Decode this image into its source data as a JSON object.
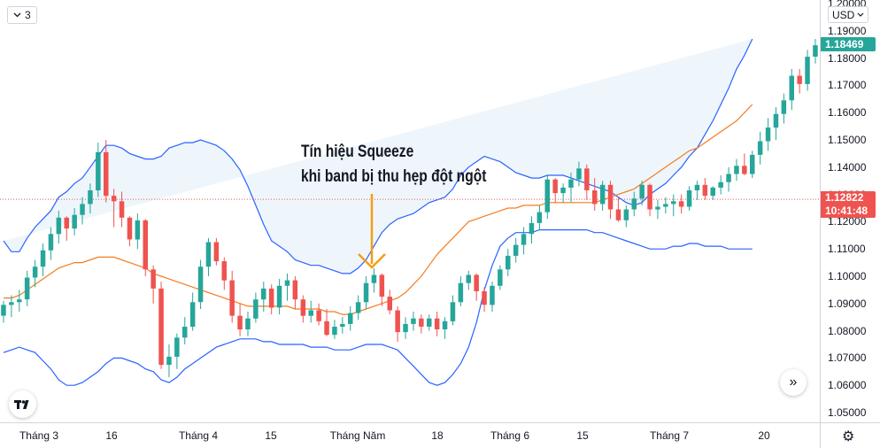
{
  "indicator_button": {
    "label": "3",
    "icon": "chevron-down-icon"
  },
  "currency_button": {
    "label": "USD",
    "icon": "chevron-down-icon"
  },
  "annotation": {
    "line1": "Tín hiệu Squeeze",
    "line2": "khi band bị thu hẹp đột ngột",
    "arrow_color": "#f59d16"
  },
  "price_labels": {
    "last": "1.18469",
    "current": "1.12822",
    "countdown": "10:41:48"
  },
  "colors": {
    "up": "#26a69a",
    "down": "#ef5350",
    "band": "#2962ff",
    "band_fill": "#eef6fc",
    "basis": "#f57c1f"
  },
  "chart_data": {
    "type": "candlestick",
    "ylim": [
      1.05,
      1.2
    ],
    "yticks": [
      "1.05000",
      "1.06000",
      "1.07000",
      "1.08000",
      "1.09000",
      "1.10000",
      "1.11000",
      "1.12000",
      "1.13000",
      "1.14000",
      "1.15000",
      "1.16000",
      "1.17000",
      "1.18000",
      "1.19000",
      "1.20000"
    ],
    "xticks": [
      "Tháng 3",
      "16",
      "Tháng 4",
      "15",
      "Tháng Năm",
      "18",
      "Tháng 6",
      "15",
      "Tháng 7",
      "20"
    ],
    "current_price_line": 1.12822,
    "ohlc": [
      [
        1.0855,
        1.091,
        1.083,
        1.0895
      ],
      [
        1.0895,
        1.093,
        1.085,
        1.0905
      ],
      [
        1.0905,
        1.095,
        1.087,
        1.0915
      ],
      [
        1.0915,
        1.102,
        1.089,
        1.0995
      ],
      [
        1.0995,
        1.106,
        1.096,
        1.1035
      ],
      [
        1.1035,
        1.112,
        1.1,
        1.1095
      ],
      [
        1.1095,
        1.118,
        1.106,
        1.1155
      ],
      [
        1.1155,
        1.124,
        1.112,
        1.1215
      ],
      [
        1.1215,
        1.122,
        1.113,
        1.1175
      ],
      [
        1.1175,
        1.125,
        1.115,
        1.1225
      ],
      [
        1.1225,
        1.129,
        1.119,
        1.1265
      ],
      [
        1.1265,
        1.134,
        1.123,
        1.1315
      ],
      [
        1.1315,
        1.149,
        1.129,
        1.1455
      ],
      [
        1.1455,
        1.15,
        1.127,
        1.1295
      ],
      [
        1.1295,
        1.132,
        1.118,
        1.1275
      ],
      [
        1.1275,
        1.131,
        1.118,
        1.1215
      ],
      [
        1.1215,
        1.122,
        1.111,
        1.1135
      ],
      [
        1.1135,
        1.123,
        1.11,
        1.1205
      ],
      [
        1.1205,
        1.121,
        1.1,
        1.1025
      ],
      [
        1.1025,
        1.104,
        1.09,
        1.0955
      ],
      [
        1.0955,
        1.098,
        1.066,
        1.0675
      ],
      [
        1.0675,
        1.075,
        1.063,
        1.0705
      ],
      [
        1.0705,
        1.079,
        1.066,
        1.0775
      ],
      [
        1.0775,
        1.085,
        1.075,
        1.0815
      ],
      [
        1.0815,
        1.094,
        1.08,
        1.0905
      ],
      [
        1.0905,
        1.106,
        1.088,
        1.1035
      ],
      [
        1.1035,
        1.114,
        1.1,
        1.1125
      ],
      [
        1.1125,
        1.114,
        1.104,
        1.1055
      ],
      [
        1.1055,
        1.107,
        1.095,
        1.0985
      ],
      [
        1.0985,
        1.102,
        1.083,
        1.0855
      ],
      [
        1.0855,
        1.09,
        1.078,
        1.0805
      ],
      [
        1.0805,
        1.087,
        1.078,
        1.0845
      ],
      [
        1.0845,
        1.094,
        1.083,
        1.0915
      ],
      [
        1.0915,
        1.098,
        1.087,
        1.0955
      ],
      [
        1.0955,
        1.097,
        1.086,
        1.0885
      ],
      [
        1.0885,
        1.099,
        1.086,
        1.0965
      ],
      [
        1.0965,
        1.101,
        1.091,
        1.0985
      ],
      [
        1.0985,
        1.1,
        1.088,
        1.0915
      ],
      [
        1.0915,
        1.093,
        1.083,
        1.0855
      ],
      [
        1.0855,
        1.091,
        1.083,
        1.0875
      ],
      [
        1.0875,
        1.09,
        1.082,
        1.0835
      ],
      [
        1.0835,
        1.088,
        1.078,
        1.0785
      ],
      [
        1.0785,
        1.084,
        1.077,
        1.0815
      ],
      [
        1.0815,
        1.085,
        1.079,
        1.0825
      ],
      [
        1.0825,
        1.089,
        1.08,
        1.0865
      ],
      [
        1.0865,
        1.093,
        1.084,
        1.0905
      ],
      [
        1.0905,
        1.1,
        1.088,
        1.0975
      ],
      [
        1.0975,
        1.103,
        1.094,
        1.1005
      ],
      [
        1.1005,
        1.101,
        1.089,
        1.0925
      ],
      [
        1.0925,
        1.095,
        1.086,
        1.0875
      ],
      [
        1.0875,
        1.089,
        1.076,
        1.0795
      ],
      [
        1.0795,
        1.085,
        1.077,
        1.0825
      ],
      [
        1.0825,
        1.087,
        1.08,
        1.0845
      ],
      [
        1.0845,
        1.086,
        1.079,
        1.0815
      ],
      [
        1.0815,
        1.086,
        1.08,
        1.0845
      ],
      [
        1.0845,
        1.087,
        1.078,
        1.0805
      ],
      [
        1.0805,
        1.085,
        1.077,
        1.0835
      ],
      [
        1.0835,
        1.093,
        1.082,
        1.0905
      ],
      [
        1.0905,
        1.1,
        1.089,
        1.0975
      ],
      [
        1.0975,
        1.102,
        1.095,
        1.1005
      ],
      [
        1.1005,
        1.101,
        1.091,
        1.0945
      ],
      [
        1.0945,
        1.096,
        1.087,
        1.0895
      ],
      [
        1.0895,
        1.098,
        1.087,
        1.0965
      ],
      [
        1.0965,
        1.104,
        1.095,
        1.1025
      ],
      [
        1.1025,
        1.11,
        1.1,
        1.1075
      ],
      [
        1.1075,
        1.114,
        1.105,
        1.1115
      ],
      [
        1.1115,
        1.118,
        1.108,
        1.1155
      ],
      [
        1.1155,
        1.122,
        1.112,
        1.1195
      ],
      [
        1.1195,
        1.126,
        1.117,
        1.1235
      ],
      [
        1.1235,
        1.137,
        1.121,
        1.1355
      ],
      [
        1.1355,
        1.136,
        1.127,
        1.1305
      ],
      [
        1.1305,
        1.134,
        1.127,
        1.1325
      ],
      [
        1.1325,
        1.138,
        1.127,
        1.1355
      ],
      [
        1.1355,
        1.142,
        1.133,
        1.1395
      ],
      [
        1.1395,
        1.141,
        1.128,
        1.1315
      ],
      [
        1.1315,
        1.136,
        1.124,
        1.1265
      ],
      [
        1.1265,
        1.135,
        1.124,
        1.1335
      ],
      [
        1.1335,
        1.135,
        1.121,
        1.1245
      ],
      [
        1.1245,
        1.129,
        1.12,
        1.1205
      ],
      [
        1.1205,
        1.126,
        1.118,
        1.1245
      ],
      [
        1.1245,
        1.131,
        1.122,
        1.1285
      ],
      [
        1.1285,
        1.135,
        1.126,
        1.1335
      ],
      [
        1.1335,
        1.134,
        1.122,
        1.1245
      ],
      [
        1.1245,
        1.128,
        1.121,
        1.1255
      ],
      [
        1.1255,
        1.129,
        1.123,
        1.1265
      ],
      [
        1.1265,
        1.13,
        1.122,
        1.1275
      ],
      [
        1.1275,
        1.13,
        1.123,
        1.1255
      ],
      [
        1.1255,
        1.133,
        1.124,
        1.1315
      ],
      [
        1.1315,
        1.135,
        1.128,
        1.1335
      ],
      [
        1.1335,
        1.136,
        1.128,
        1.1295
      ],
      [
        1.1295,
        1.133,
        1.128,
        1.1325
      ],
      [
        1.1325,
        1.137,
        1.13,
        1.1345
      ],
      [
        1.1345,
        1.14,
        1.131,
        1.1375
      ],
      [
        1.1375,
        1.143,
        1.135,
        1.1405
      ],
      [
        1.1405,
        1.145,
        1.137,
        1.1375
      ],
      [
        1.1375,
        1.146,
        1.136,
        1.1445
      ],
      [
        1.1445,
        1.153,
        1.141,
        1.1495
      ],
      [
        1.1495,
        1.158,
        1.146,
        1.1545
      ],
      [
        1.1545,
        1.162,
        1.15,
        1.1595
      ],
      [
        1.1595,
        1.167,
        1.156,
        1.1645
      ],
      [
        1.1645,
        1.176,
        1.161,
        1.1735
      ],
      [
        1.1735,
        1.176,
        1.167,
        1.1705
      ],
      [
        1.1705,
        1.183,
        1.168,
        1.1805
      ],
      [
        1.1805,
        1.187,
        1.178,
        1.1847
      ]
    ],
    "bollinger": {
      "upper": [
        1.113,
        1.109,
        1.109,
        1.114,
        1.118,
        1.121,
        1.124,
        1.129,
        1.131,
        1.134,
        1.136,
        1.14,
        1.144,
        1.148,
        1.148,
        1.147,
        1.145,
        1.144,
        1.143,
        1.143,
        1.144,
        1.147,
        1.148,
        1.149,
        1.149,
        1.15,
        1.149,
        1.148,
        1.146,
        1.143,
        1.139,
        1.133,
        1.126,
        1.119,
        1.113,
        1.111,
        1.109,
        1.106,
        1.105,
        1.104,
        1.104,
        1.103,
        1.102,
        1.101,
        1.101,
        1.103,
        1.106,
        1.111,
        1.116,
        1.119,
        1.121,
        1.122,
        1.123,
        1.125,
        1.127,
        1.128,
        1.129,
        1.132,
        1.137,
        1.14,
        1.142,
        1.144,
        1.143,
        1.142,
        1.14,
        1.138,
        1.137,
        1.136,
        1.136,
        1.137,
        1.137,
        1.137,
        1.136,
        1.135,
        1.134,
        1.133,
        1.132,
        1.131,
        1.129,
        1.127,
        1.126,
        1.127,
        1.13,
        1.132,
        1.134,
        1.137,
        1.14,
        1.144,
        1.147,
        1.152,
        1.157,
        1.163,
        1.169,
        1.176,
        1.181,
        1.187
      ],
      "basis": [
        1.092,
        1.092,
        1.093,
        1.095,
        1.097,
        1.099,
        1.101,
        1.103,
        1.104,
        1.105,
        1.105,
        1.106,
        1.107,
        1.107,
        1.107,
        1.106,
        1.105,
        1.104,
        1.103,
        1.101,
        1.1,
        1.099,
        1.098,
        1.097,
        1.096,
        1.095,
        1.094,
        1.093,
        1.092,
        1.091,
        1.09,
        1.089,
        1.089,
        1.089,
        1.089,
        1.089,
        1.089,
        1.088,
        1.088,
        1.088,
        1.088,
        1.087,
        1.087,
        1.086,
        1.086,
        1.087,
        1.088,
        1.089,
        1.09,
        1.091,
        1.092,
        1.094,
        1.097,
        1.1,
        1.104,
        1.108,
        1.111,
        1.114,
        1.117,
        1.12,
        1.121,
        1.122,
        1.123,
        1.124,
        1.125,
        1.125,
        1.126,
        1.126,
        1.126,
        1.127,
        1.127,
        1.127,
        1.127,
        1.127,
        1.127,
        1.127,
        1.128,
        1.129,
        1.13,
        1.131,
        1.132,
        1.134,
        1.136,
        1.138,
        1.14,
        1.142,
        1.144,
        1.146,
        1.147,
        1.149,
        1.151,
        1.153,
        1.155,
        1.157,
        1.16,
        1.163
      ],
      "lower": [
        1.072,
        1.073,
        1.074,
        1.073,
        1.072,
        1.069,
        1.066,
        1.062,
        1.06,
        1.06,
        1.061,
        1.063,
        1.065,
        1.068,
        1.07,
        1.07,
        1.069,
        1.068,
        1.066,
        1.065,
        1.062,
        1.061,
        1.063,
        1.066,
        1.068,
        1.07,
        1.072,
        1.074,
        1.075,
        1.076,
        1.077,
        1.077,
        1.077,
        1.076,
        1.076,
        1.075,
        1.075,
        1.075,
        1.075,
        1.074,
        1.074,
        1.074,
        1.073,
        1.073,
        1.073,
        1.074,
        1.075,
        1.075,
        1.075,
        1.074,
        1.073,
        1.07,
        1.067,
        1.064,
        1.061,
        1.06,
        1.061,
        1.064,
        1.068,
        1.074,
        1.083,
        1.095,
        1.104,
        1.111,
        1.114,
        1.116,
        1.116,
        1.116,
        1.117,
        1.117,
        1.117,
        1.117,
        1.117,
        1.117,
        1.117,
        1.116,
        1.116,
        1.115,
        1.114,
        1.113,
        1.112,
        1.111,
        1.11,
        1.11,
        1.11,
        1.111,
        1.111,
        1.112,
        1.112,
        1.111,
        1.111,
        1.111,
        1.11,
        1.11,
        1.11,
        1.11
      ]
    }
  }
}
